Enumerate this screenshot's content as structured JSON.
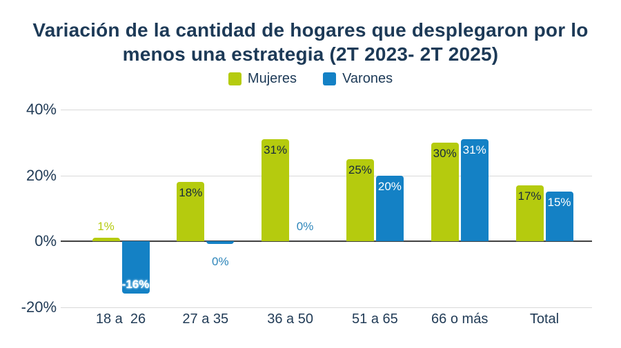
{
  "title": {
    "lines": [
      "Variación de la cantidad de hogares que desplegaron por lo",
      "menos una estrategia (2T 2023- 2T 2025)"
    ]
  },
  "chart_data": {
    "type": "bar",
    "title": "Variación de la cantidad de hogares que desplegaron por lo menos una estrategia (2T 2023- 2T 2025)",
    "categories": [
      "18 a  26",
      "27 a 35",
      "36 a 50",
      "51 a 65",
      "66 o más",
      "Total"
    ],
    "series": [
      {
        "name": "Mujeres",
        "color": "#b5cb0e",
        "inside_label_color": "#16293d",
        "outside_label_color": "#b5cb0e",
        "points": [
          {
            "value": 1,
            "label": "1%",
            "label_pos": "above"
          },
          {
            "value": 18,
            "label": "18%",
            "label_pos": "inside-top"
          },
          {
            "value": 31,
            "label": "31%",
            "label_pos": "inside-top"
          },
          {
            "value": 25,
            "label": "25%",
            "label_pos": "inside-top"
          },
          {
            "value": 30,
            "label": "30%",
            "label_pos": "inside-top"
          },
          {
            "value": 17,
            "label": "17%",
            "label_pos": "inside-top"
          }
        ]
      },
      {
        "name": "Varones",
        "color": "#1481c5",
        "inside_label_color": "#ffffff",
        "outside_label_color": "#2e86ba",
        "points": [
          {
            "value": -16,
            "label": "-16%",
            "label_pos": "inside-bottom"
          },
          {
            "value": 0,
            "label": "0%",
            "label_pos": "below-axis"
          },
          {
            "value": 0,
            "label": "0%",
            "label_pos": "above-axis"
          },
          {
            "value": 20,
            "label": "20%",
            "label_pos": "inside-top"
          },
          {
            "value": 31,
            "label": "31%",
            "label_pos": "inside-top"
          },
          {
            "value": 15,
            "label": "15%",
            "label_pos": "inside-top"
          }
        ]
      }
    ],
    "y_axis": {
      "ticks": [
        {
          "value": 40,
          "label": "40%"
        },
        {
          "value": 20,
          "label": "20%"
        },
        {
          "value": 0,
          "label": "0%"
        },
        {
          "value": -20,
          "label": "-20%"
        }
      ],
      "ylim": [
        -20,
        40
      ],
      "grid": true
    },
    "legend_position": "top"
  },
  "colors": {
    "title_text": "#1d3a57",
    "axis_text": "#223c57",
    "gridline": "#d9d9d9",
    "zero_line": "#404040",
    "background": "#ffffff"
  }
}
